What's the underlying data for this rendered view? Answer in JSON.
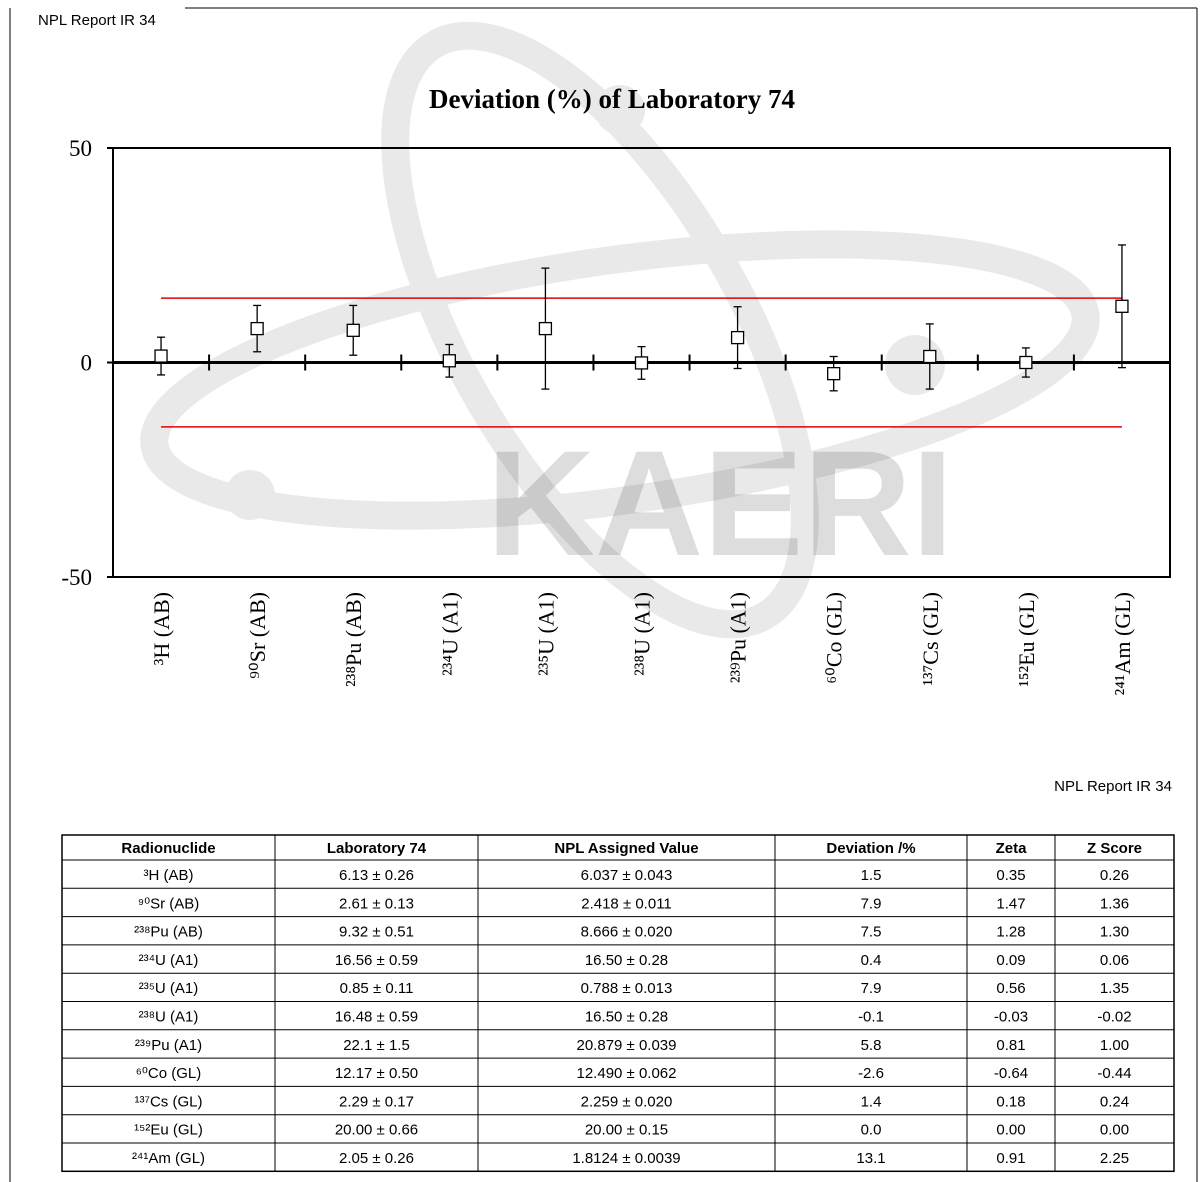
{
  "header": {
    "left": "NPL Report IR 34",
    "right": "NPL Report IR 34"
  },
  "watermark": "KAERI",
  "chart_data": {
    "type": "errorbar",
    "title": "Deviation (%) of Laboratory 74",
    "categories": [
      "³H (AB)",
      "⁹⁰Sr (AB)",
      "²³⁸Pu (AB)",
      "²³⁴U (A1)",
      "²³⁵U (A1)",
      "²³⁸U (A1)",
      "²³⁹Pu (A1)",
      "⁶⁰Co (GL)",
      "¹³⁷Cs (GL)",
      "¹⁵²Eu (GL)",
      "²⁴¹Am (GL)"
    ],
    "values": [
      1.5,
      7.9,
      7.5,
      0.4,
      7.9,
      -0.1,
      5.8,
      -2.6,
      1.4,
      0.0,
      13.1
    ],
    "errors": [
      4.4,
      5.4,
      5.8,
      3.8,
      14.1,
      3.8,
      7.2,
      4.0,
      7.6,
      3.4,
      14.3
    ],
    "color": "#000000",
    "reference_lines": [
      15,
      -15
    ],
    "reference_color": "#e00000",
    "ylim": [
      -50,
      50
    ],
    "yticks": [
      -50,
      0,
      50
    ]
  },
  "table": {
    "columns": [
      "Radionuclide",
      "Laboratory 74",
      "NPL Assigned Value",
      "Deviation /%",
      "Zeta",
      "Z Score"
    ],
    "rows": [
      [
        "³H (AB)",
        "6.13 ± 0.26",
        "6.037 ± 0.043",
        "1.5",
        "0.35",
        "0.26"
      ],
      [
        "⁹⁰Sr (AB)",
        "2.61 ± 0.13",
        "2.418 ± 0.011",
        "7.9",
        "1.47",
        "1.36"
      ],
      [
        "²³⁸Pu (AB)",
        "9.32 ± 0.51",
        "8.666 ± 0.020",
        "7.5",
        "1.28",
        "1.30"
      ],
      [
        "²³⁴U (A1)",
        "16.56 ± 0.59",
        "16.50 ± 0.28",
        "0.4",
        "0.09",
        "0.06"
      ],
      [
        "²³⁵U (A1)",
        "0.85 ± 0.11",
        "0.788 ± 0.013",
        "7.9",
        "0.56",
        "1.35"
      ],
      [
        "²³⁸U (A1)",
        "16.48 ± 0.59",
        "16.50 ± 0.28",
        "-0.1",
        "-0.03",
        "-0.02"
      ],
      [
        "²³⁹Pu (A1)",
        "22.1 ± 1.5",
        "20.879 ± 0.039",
        "5.8",
        "0.81",
        "1.00"
      ],
      [
        "⁶⁰Co (GL)",
        "12.17 ± 0.50",
        "12.490 ± 0.062",
        "-2.6",
        "-0.64",
        "-0.44"
      ],
      [
        "¹³⁷Cs (GL)",
        "2.29 ± 0.17",
        "2.259 ± 0.020",
        "1.4",
        "0.18",
        "0.24"
      ],
      [
        "¹⁵²Eu (GL)",
        "20.00 ± 0.66",
        "20.00 ± 0.15",
        "0.0",
        "0.00",
        "0.00"
      ],
      [
        "²⁴¹Am (GL)",
        "2.05 ± 0.26",
        "1.8124 ± 0.0039",
        "13.1",
        "0.91",
        "2.25"
      ]
    ]
  }
}
